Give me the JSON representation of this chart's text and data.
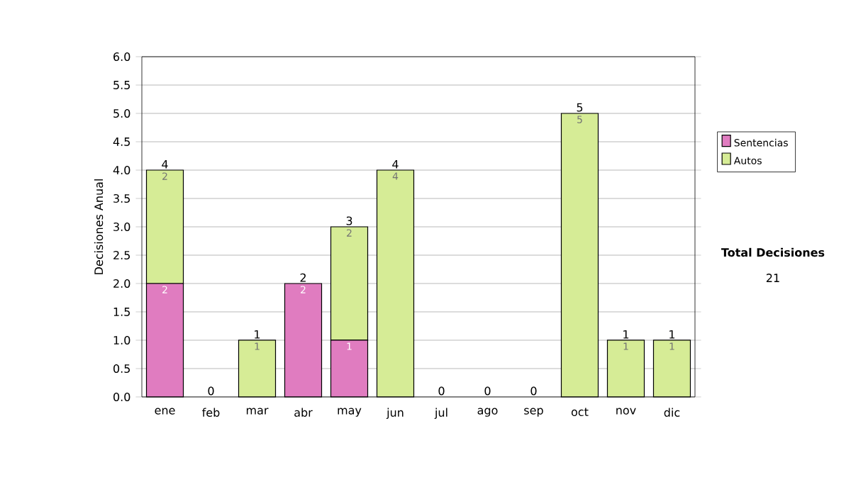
{
  "chart_data": {
    "type": "bar",
    "stacked": true,
    "ylabel": "Decisiones Anual",
    "categories": [
      "ene",
      "feb",
      "mar",
      "abr",
      "may",
      "jun",
      "jul",
      "ago",
      "sep",
      "oct",
      "nov",
      "dic"
    ],
    "series": [
      {
        "name": "Sentencias",
        "color": "#e07cc0",
        "values": [
          2,
          0,
          0,
          2,
          1,
          0,
          0,
          0,
          0,
          0,
          0,
          0
        ],
        "value_labels": [
          "2",
          null,
          null,
          "2",
          "1",
          null,
          null,
          null,
          null,
          null,
          null,
          null
        ]
      },
      {
        "name": "Autos",
        "color": "#d6ec96",
        "values": [
          2,
          0,
          1,
          0,
          2,
          4,
          0,
          0,
          0,
          5,
          1,
          1
        ],
        "value_labels": [
          "2",
          null,
          "1",
          null,
          "2",
          "4",
          null,
          null,
          null,
          "5",
          "1",
          "1"
        ]
      }
    ],
    "totals": [
      "4",
      "0",
      "1",
      "2",
      "3",
      "4",
      "0",
      "0",
      "0",
      "5",
      "1",
      "1"
    ],
    "ylim": [
      0,
      6
    ],
    "yticks": [
      {
        "value": 0,
        "label": "0.0"
      },
      {
        "value": 0.5,
        "label": "0.5"
      },
      {
        "value": 1,
        "label": "1.0"
      },
      {
        "value": 1.5,
        "label": "1.5"
      },
      {
        "value": 2,
        "label": "2.0"
      },
      {
        "value": 2.5,
        "label": "2.5"
      },
      {
        "value": 3,
        "label": "3.0"
      },
      {
        "value": 3.5,
        "label": "3.5"
      },
      {
        "value": 4,
        "label": "4.0"
      },
      {
        "value": 4.5,
        "label": "4.5"
      },
      {
        "value": 5,
        "label": "5.0"
      },
      {
        "value": 5.5,
        "label": "5.5"
      },
      {
        "value": 6,
        "label": "6.0"
      }
    ],
    "grid": "y",
    "legend": "right",
    "annotations": [
      "**Total Decisiones**",
      "21"
    ]
  }
}
